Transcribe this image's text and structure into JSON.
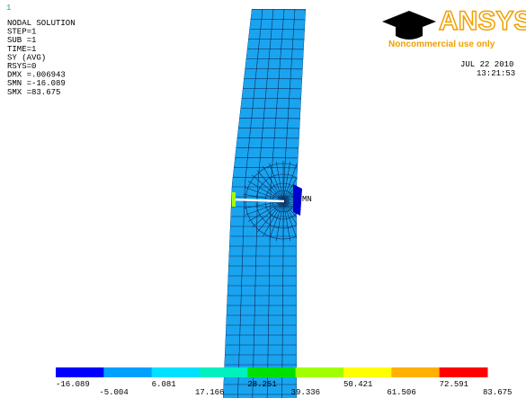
{
  "window_number": "1",
  "info": [
    "NODAL SOLUTION",
    "STEP=1",
    "SUB =1",
    "TIME=1",
    "SY      (AVG)",
    "RSYS=0",
    "DMX =.006943",
    "SMN =-16.089",
    "SMX =83.675"
  ],
  "date": "JUL 22 2010",
  "time": "13:21:53",
  "logo": {
    "name": "ANSYS",
    "tagline": "Noncommercial use only"
  },
  "min_marker": "MN",
  "legend": {
    "labels": [
      "-16.089",
      "-5.004",
      "6.081",
      "17.166",
      "28.251",
      "39.336",
      "50.421",
      "61.506",
      "72.591",
      "83.675"
    ],
    "colors": [
      "#0000ff",
      "#00a0ff",
      "#00e0ff",
      "#00f0c0",
      "#00e000",
      "#a0ff00",
      "#ffff00",
      "#ffb000",
      "#ff0000"
    ]
  }
}
